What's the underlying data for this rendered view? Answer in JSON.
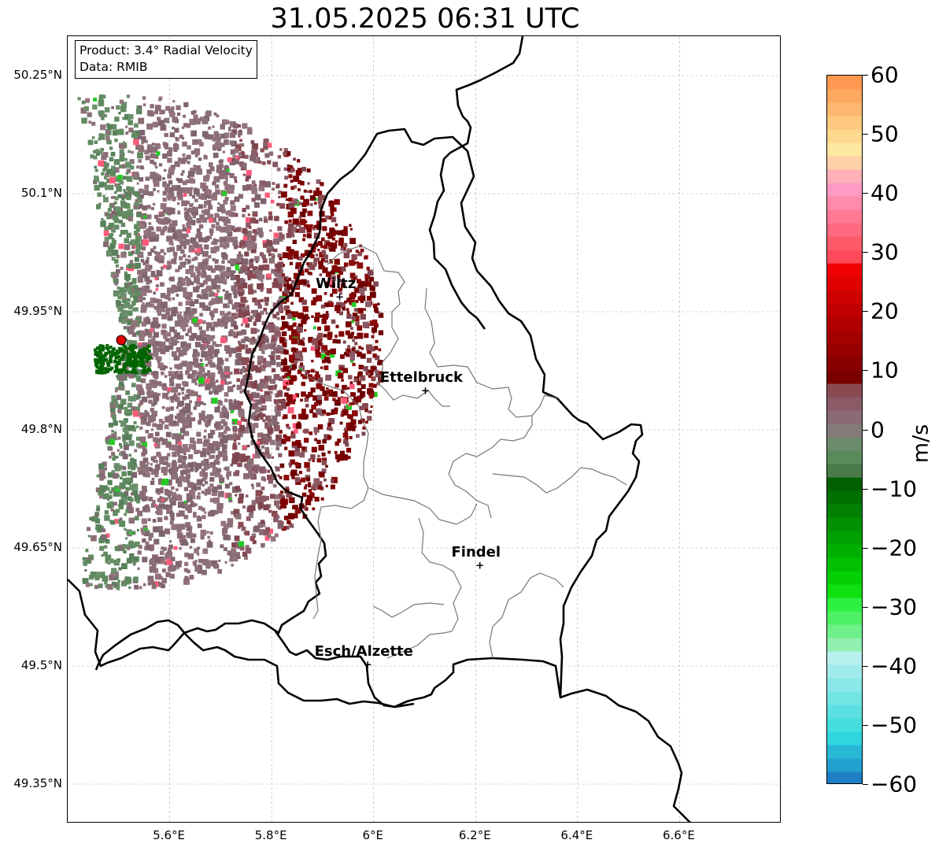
{
  "title": "31.05.2025 06:31 UTC",
  "info": {
    "product_line": "Product: 3.4° Radial Velocity",
    "data_line": "Data: RMIB"
  },
  "map": {
    "lon_range": [
      5.4,
      6.8
    ],
    "lat_range": [
      49.3,
      50.3
    ],
    "lat_ticks": [
      {
        "value": 50.25,
        "label": "50.25°N"
      },
      {
        "value": 50.1,
        "label": "50.1°N"
      },
      {
        "value": 49.95,
        "label": "49.95°N"
      },
      {
        "value": 49.8,
        "label": "49.8°N"
      },
      {
        "value": 49.65,
        "label": "49.65°N"
      },
      {
        "value": 49.5,
        "label": "49.5°N"
      },
      {
        "value": 49.35,
        "label": "49.35°N"
      }
    ],
    "lon_ticks": [
      {
        "value": 5.6,
        "label": "5.6°E"
      },
      {
        "value": 5.8,
        "label": "5.8°E"
      },
      {
        "value": 6.0,
        "label": "6°E"
      },
      {
        "value": 6.2,
        "label": "6.2°E"
      },
      {
        "value": 6.4,
        "label": "6.4°E"
      },
      {
        "value": 6.6,
        "label": "6.6°E"
      }
    ],
    "grid": true,
    "radar_site": {
      "lon": 5.505,
      "lat": 49.914,
      "color": "#e00000"
    },
    "cities": [
      {
        "name": "Wiltz",
        "lon": 5.935,
        "lat": 49.967
      },
      {
        "name": "Ettelbruck",
        "lon": 6.103,
        "lat": 49.848
      },
      {
        "name": "Findel",
        "lon": 6.21,
        "lat": 49.626
      },
      {
        "name": "Esch/Alzette",
        "lon": 5.99,
        "lat": 49.5
      }
    ]
  },
  "colorbar": {
    "min": -60,
    "max": 60,
    "unit": "m/s",
    "ticks": [
      {
        "value": 60,
        "label": "60"
      },
      {
        "value": 50,
        "label": "50"
      },
      {
        "value": 40,
        "label": "40"
      },
      {
        "value": 30,
        "label": "30"
      },
      {
        "value": 20,
        "label": "20"
      },
      {
        "value": 10,
        "label": "10"
      },
      {
        "value": 0,
        "label": "0"
      },
      {
        "value": -10,
        "label": "−10"
      },
      {
        "value": -20,
        "label": "−20"
      },
      {
        "value": -30,
        "label": "−30"
      },
      {
        "value": -40,
        "label": "−40"
      },
      {
        "value": -50,
        "label": "−50"
      },
      {
        "value": -60,
        "label": "−60"
      }
    ],
    "colors": [
      "#1f7fc4",
      "#22a0d0",
      "#28b8d6",
      "#2fd6de",
      "#45dede",
      "#5ae0e0",
      "#72e4e4",
      "#8ae8e8",
      "#a0ecec",
      "#b8f0f0",
      "#90f0b0",
      "#6ef08a",
      "#4ef064",
      "#2ef040",
      "#10e010",
      "#04d004",
      "#00c000",
      "#00b000",
      "#00a000",
      "#009000",
      "#008000",
      "#007000",
      "#006000",
      "#4a7a4a",
      "#5a8a5a",
      "#6c8a6c",
      "#847a7a",
      "#8a6a74",
      "#8a5a66",
      "#8a4a52",
      "#7a0000",
      "#880000",
      "#960000",
      "#a40000",
      "#b20000",
      "#c00000",
      "#d00000",
      "#e00000",
      "#f00000",
      "#ff4a5a",
      "#ff5a6a",
      "#ff6a80",
      "#ff7a94",
      "#ff8aac",
      "#ff9ac4",
      "#ffb0b8",
      "#ffd0a8",
      "#ffe8a0",
      "#ffd890",
      "#ffc880",
      "#ffb870",
      "#ffa860",
      "#ff9850"
    ]
  }
}
